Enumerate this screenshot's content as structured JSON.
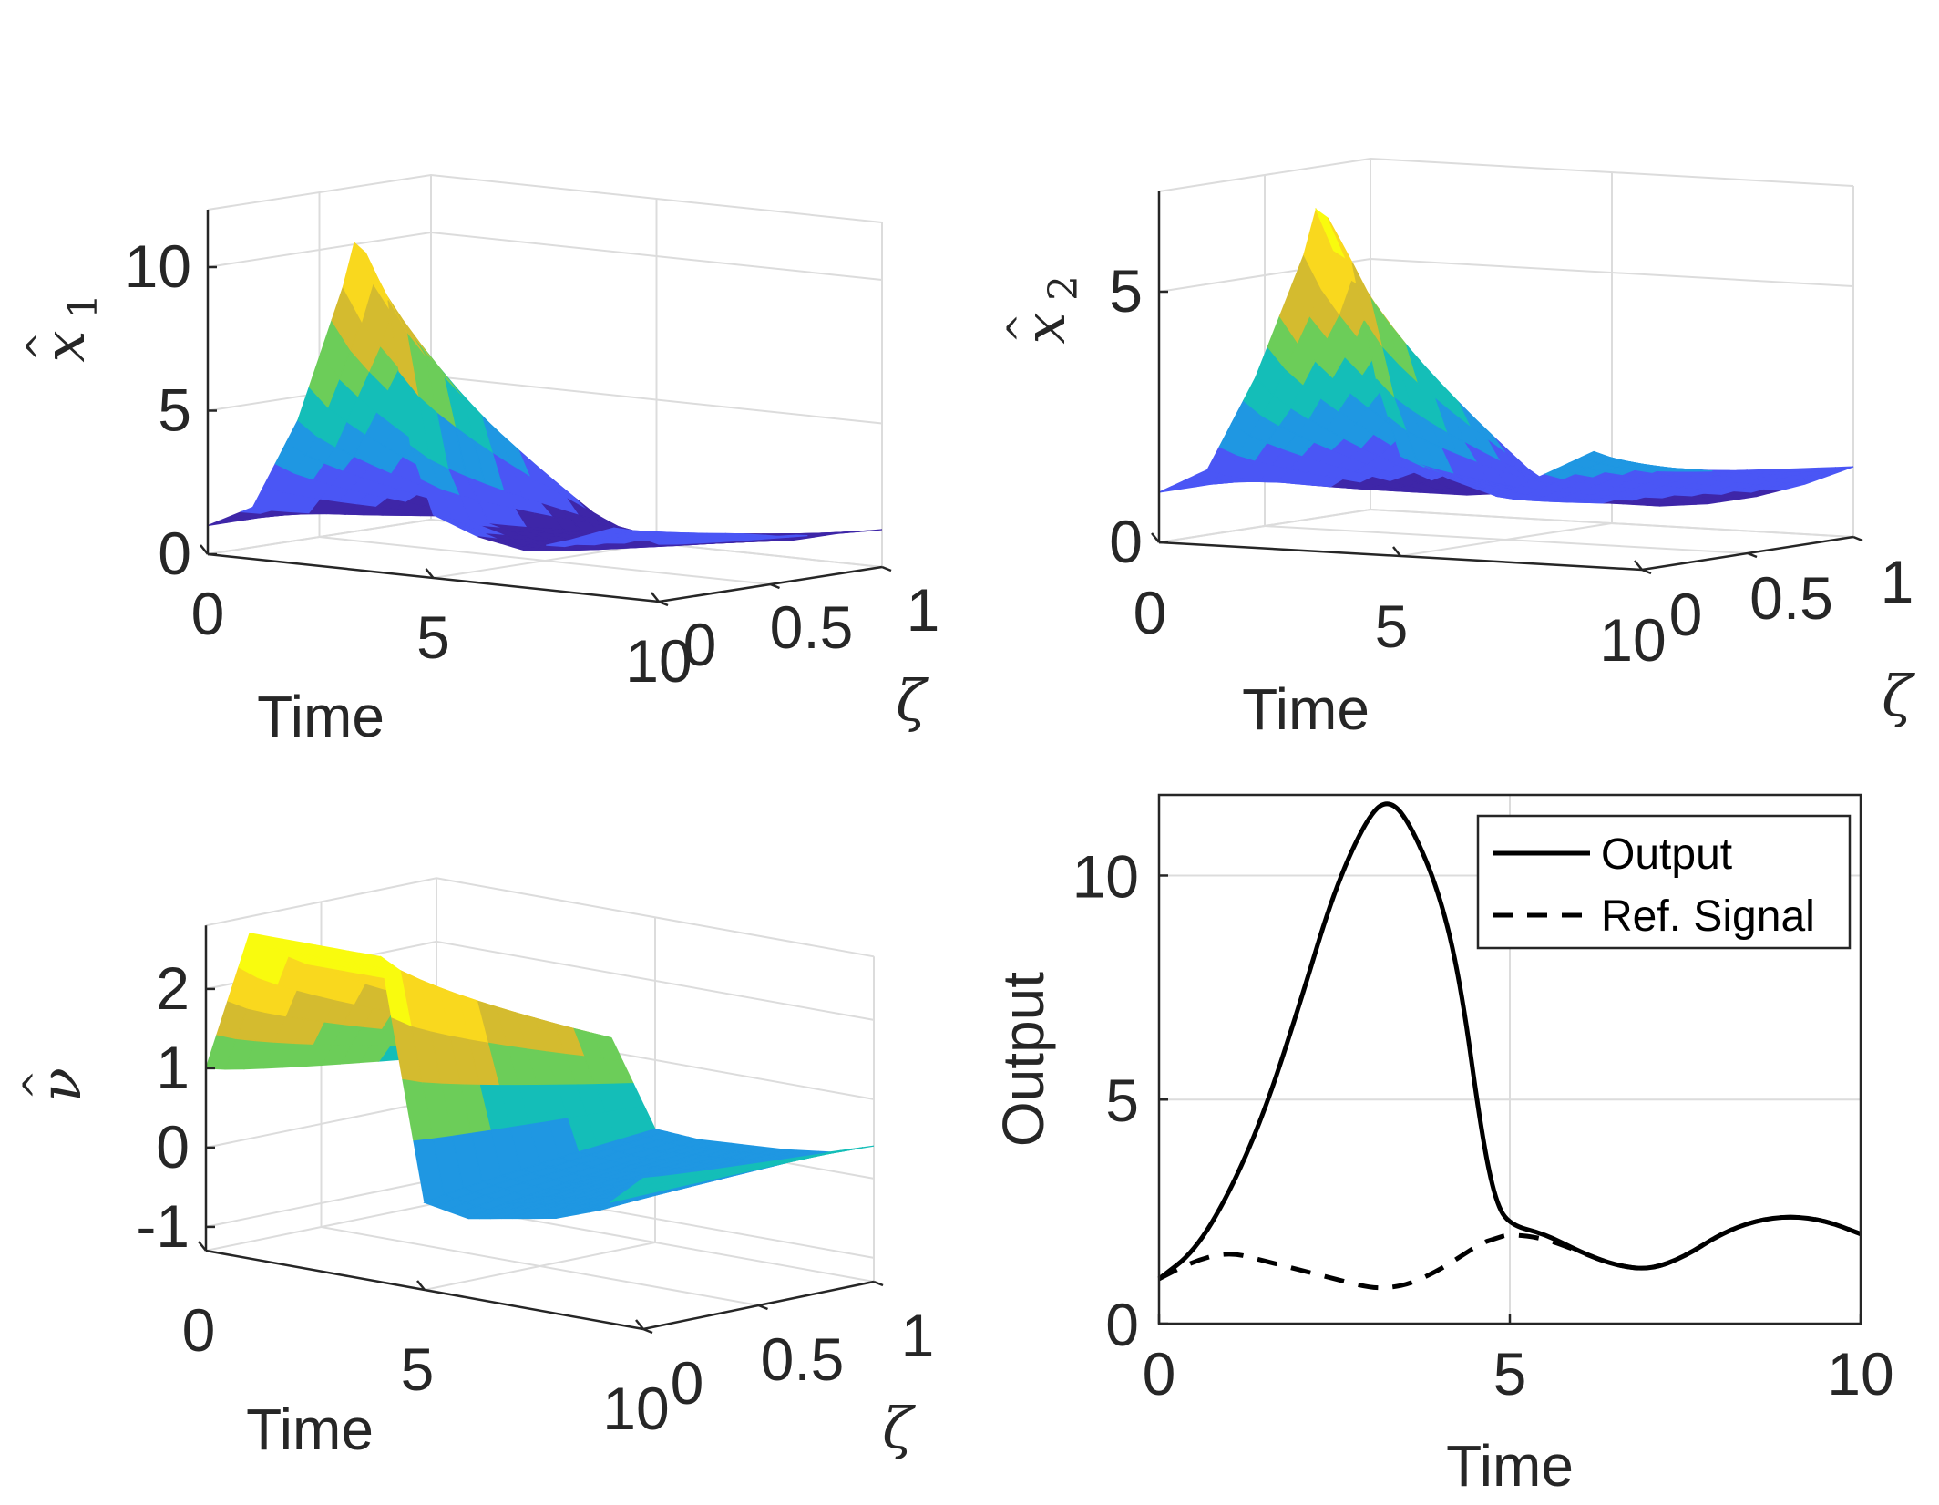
{
  "chart_data": [
    {
      "id": "x1",
      "type": "surface",
      "title": "",
      "xlabel": "Time",
      "ylabel": "ζ",
      "zlabel": "x̂₁",
      "zlabel_parts": {
        "base": "x",
        "hat": "^",
        "sub": "1"
      },
      "xlim": [
        0,
        10
      ],
      "ylim": [
        0,
        1
      ],
      "zlim": [
        0,
        12
      ],
      "xticks": [
        "0",
        "5",
        "10"
      ],
      "yticks": [
        "0",
        "0.5",
        "1"
      ],
      "zticks": [
        "0",
        "5",
        "10"
      ],
      "z_at_zeta0_profile": {
        "time": [
          0,
          1,
          2,
          3,
          3.3,
          4,
          4.5,
          5,
          6,
          7,
          8,
          9,
          10
        ],
        "value": [
          1,
          1.8,
          5,
          9.8,
          11.7,
          9.5,
          4.5,
          2.2,
          1.6,
          1.3,
          1.8,
          2.4,
          2
        ]
      },
      "z_at_zeta1_profile": {
        "time": [
          0,
          1,
          2,
          3,
          4,
          5,
          6,
          7,
          8,
          9,
          10
        ],
        "value": [
          1,
          0.3,
          0.3,
          0.4,
          0.4,
          0.3,
          0.3,
          0.4,
          0.6,
          1,
          1.3
        ]
      },
      "colormap": [
        "#3e26a8",
        "#4a56f5",
        "#1f97e2",
        "#14beb8",
        "#6ccd59",
        "#d4bb2f",
        "#f9d81e",
        "#f9fb0e"
      ]
    },
    {
      "id": "x2",
      "type": "surface",
      "title": "",
      "xlabel": "Time",
      "ylabel": "ζ",
      "zlabel": "x̂₂",
      "zlabel_parts": {
        "base": "x",
        "hat": "^",
        "sub": "2"
      },
      "xlim": [
        0,
        10
      ],
      "ylim": [
        0,
        1
      ],
      "zlim": [
        0,
        7
      ],
      "xticks": [
        "0",
        "5",
        "10"
      ],
      "yticks": [
        "0",
        "0.5",
        "1"
      ],
      "zticks": [
        "0",
        "5"
      ],
      "z_at_zeta0_profile": {
        "time": [
          0,
          1,
          2,
          3,
          3.3,
          4,
          4.5,
          5,
          6,
          7,
          8,
          9,
          10
        ],
        "value": [
          1,
          1.5,
          3.4,
          5.9,
          7,
          5.8,
          3.5,
          2,
          1.6,
          1.3,
          1.8,
          2.3,
          2
        ]
      },
      "z_at_zeta1_profile": {
        "time": [
          0,
          1,
          2,
          3,
          4,
          5,
          6,
          7,
          8,
          9,
          10
        ],
        "value": [
          1,
          0.4,
          0.4,
          0.5,
          0.4,
          0.4,
          0.4,
          0.5,
          0.7,
          1,
          1.4
        ]
      },
      "colormap": [
        "#3e26a8",
        "#4a56f5",
        "#1f97e2",
        "#14beb8",
        "#6ccd59",
        "#d4bb2f",
        "#f9d81e",
        "#f9fb0e"
      ]
    },
    {
      "id": "nu",
      "type": "surface",
      "title": "",
      "xlabel": "Time",
      "ylabel": "ζ",
      "zlabel": "ν̂",
      "zlabel_parts": {
        "base": "ν",
        "hat": "^"
      },
      "xlim": [
        0,
        10
      ],
      "ylim": [
        0,
        1
      ],
      "zlim": [
        -1.3,
        2.8
      ],
      "xticks": [
        "0",
        "5",
        "10"
      ],
      "yticks": [
        "0",
        "0.5",
        "1"
      ],
      "zticks": [
        "-1",
        "0",
        "1",
        "2"
      ],
      "z_at_zeta0_profile": {
        "time": [
          0,
          1,
          2,
          3,
          4,
          5,
          6,
          7,
          8,
          9,
          10
        ],
        "value": [
          1,
          2.8,
          2.8,
          2.8,
          2.8,
          -0.2,
          -0.3,
          -0.2,
          -0.1,
          0.1,
          0.6
        ]
      },
      "colormap": [
        "#3e26a8",
        "#4a56f5",
        "#1f97e2",
        "#14beb8",
        "#6ccd59",
        "#d4bb2f",
        "#f9d81e",
        "#f9fb0e"
      ]
    },
    {
      "id": "output",
      "type": "line",
      "title": "",
      "xlabel": "Time",
      "ylabel": "Output",
      "xlim": [
        0,
        10
      ],
      "ylim": [
        0,
        11.8
      ],
      "xticks": [
        "0",
        "5",
        "10"
      ],
      "yticks": [
        "0",
        "5",
        "10"
      ],
      "grid": true,
      "legend_position": "top-right",
      "x": [
        0,
        0.5,
        1,
        1.5,
        2,
        2.5,
        3,
        3.3,
        3.6,
        4,
        4.3,
        4.6,
        4.8,
        5,
        5.5,
        6,
        6.5,
        7,
        7.5,
        8,
        8.5,
        9,
        9.5,
        10
      ],
      "series": [
        {
          "name": "Output",
          "style": "solid",
          "values": [
            1.0,
            1.6,
            2.9,
            4.7,
            7.1,
            9.7,
            11.4,
            11.7,
            11.1,
            9.6,
            7.6,
            4.2,
            2.7,
            2.2,
            2.0,
            1.6,
            1.3,
            1.2,
            1.5,
            2.0,
            2.3,
            2.4,
            2.3,
            2.0
          ]
        },
        {
          "name": "Ref. Signal",
          "style": "dashed",
          "values": [
            1.0,
            1.4,
            1.6,
            1.4,
            1.2,
            1.0,
            0.8,
            0.8,
            0.9,
            1.2,
            1.5,
            1.8,
            1.9,
            2.0,
            1.9,
            1.6,
            1.3,
            1.2,
            1.5,
            2.0,
            2.3,
            2.4,
            2.3,
            2.0
          ]
        }
      ]
    }
  ]
}
